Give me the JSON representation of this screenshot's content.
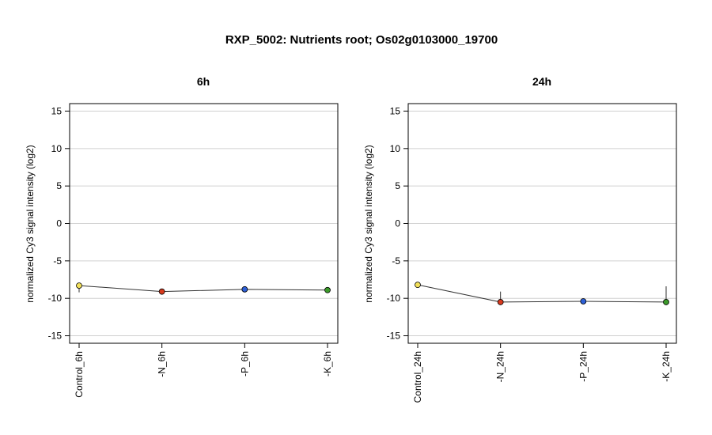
{
  "figure": {
    "title": "RXP_5002: Nutrients root; Os02g0103000_19700"
  },
  "chart_data": [
    {
      "type": "line",
      "title": "6h",
      "xlabel": "",
      "ylabel": "normalized Cy3 signal intensity (log2)",
      "ylim": [
        -16,
        16
      ],
      "yticks": [
        15,
        10,
        5,
        0,
        -5,
        -10,
        -15
      ],
      "grid": true,
      "categories": [
        "Control_6h",
        "-N_6h",
        "-P_6h",
        "-K_6h"
      ],
      "values": [
        -8.3,
        -9.1,
        -8.8,
        -8.9
      ],
      "err_low": [
        -9.2,
        -9.2,
        -8.9,
        -9.0
      ],
      "err_high": [
        -8.1,
        -9.0,
        -8.7,
        -8.8
      ],
      "colors": [
        "#f2e05a",
        "#d93a1e",
        "#2d5fd6",
        "#3b9a2a"
      ]
    },
    {
      "type": "line",
      "title": "24h",
      "xlabel": "",
      "ylabel": "normalized Cy3 signal intensity (log2)",
      "ylim": [
        -16,
        16
      ],
      "yticks": [
        15,
        10,
        5,
        0,
        -5,
        -10,
        -15
      ],
      "grid": true,
      "categories": [
        "Control_24h",
        "-N_24h",
        "-P_24h",
        "-K_24h"
      ],
      "values": [
        -8.2,
        -10.5,
        -10.4,
        -10.5
      ],
      "err_low": [
        -8.4,
        -10.6,
        -10.5,
        -10.6
      ],
      "err_high": [
        -8.0,
        -9.1,
        -10.3,
        -8.4
      ],
      "colors": [
        "#f2e05a",
        "#d93a1e",
        "#2d5fd6",
        "#3b9a2a"
      ]
    }
  ]
}
